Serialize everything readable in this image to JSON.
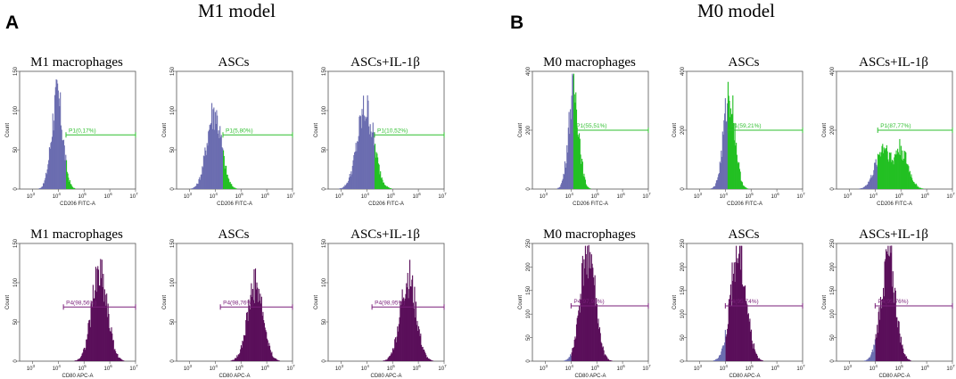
{
  "panels": [
    {
      "letter": "A",
      "title": "M1 model"
    },
    {
      "letter": "B",
      "title": "M0 model"
    }
  ],
  "chart_data": [
    {
      "type": "histogram",
      "panel": "A",
      "title": "M1 macrophages",
      "xlabel": "CD206 FITC-A",
      "ylabel": "Count",
      "yticks": [
        "0",
        "50",
        "100",
        "150"
      ],
      "ylim": [
        0,
        150
      ],
      "xlim": [
        2.5,
        7
      ],
      "peak_log": 3.95,
      "width": 0.22,
      "peak": 120,
      "gate": {
        "label": "P1(0,17%)",
        "start_log": 4.3,
        "end_log": 7,
        "percent": 0.17
      },
      "gate_color": "#2fbf2f",
      "fill": "#6b6db0",
      "positive_fill": "#22c022"
    },
    {
      "type": "histogram",
      "panel": "A",
      "title": "ASCs",
      "xlabel": "CD206 FITC-A",
      "ylabel": "Count",
      "yticks": [
        "0",
        "50",
        "100",
        "150"
      ],
      "ylim": [
        0,
        150
      ],
      "xlim": [
        2.5,
        7
      ],
      "peak_log": 3.95,
      "width": 0.28,
      "peak": 102,
      "gate": {
        "label": "P1(5,80%)",
        "start_log": 4.3,
        "end_log": 7,
        "percent": 5.8
      },
      "gate_color": "#2fbf2f",
      "fill": "#6b6db0",
      "positive_fill": "#22c022"
    },
    {
      "type": "histogram",
      "panel": "A",
      "title": "ASCs+IL-1β",
      "xlabel": "CD206 FITC-A",
      "ylabel": "Count",
      "yticks": [
        "0",
        "50",
        "100",
        "150"
      ],
      "ylim": [
        0,
        150
      ],
      "xlim": [
        2.5,
        7
      ],
      "peak_log": 3.95,
      "width": 0.32,
      "peak": 105,
      "gate": {
        "label": "P1(10,52%)",
        "start_log": 4.3,
        "end_log": 7,
        "percent": 10.52
      },
      "gate_color": "#2fbf2f",
      "fill": "#6b6db0",
      "positive_fill": "#22c022"
    },
    {
      "type": "histogram",
      "panel": "B",
      "title": "M0 macrophages",
      "xlabel": "CD206 FITC-A",
      "ylabel": "Count",
      "yticks": [
        "0",
        "200",
        "400"
      ],
      "ylim": [
        0,
        400
      ],
      "xlim": [
        2.5,
        7
      ],
      "peak_log": 4.1,
      "width": 0.2,
      "peak": 345,
      "gate": {
        "label": "P1(55,51%)",
        "start_log": 4.1,
        "end_log": 7,
        "percent": 55.51
      },
      "gate_color": "#2fbf2f",
      "fill": "#6b6db0",
      "positive_fill": "#22c022"
    },
    {
      "type": "histogram",
      "panel": "B",
      "title": "ASCs",
      "xlabel": "CD206 FITC-A",
      "ylabel": "Count",
      "yticks": [
        "0",
        "200",
        "400"
      ],
      "ylim": [
        0,
        400
      ],
      "xlim": [
        2.5,
        7
      ],
      "peak_log": 4.15,
      "width": 0.22,
      "peak": 330,
      "gate": {
        "label": "P1(59,21%)",
        "start_log": 4.1,
        "end_log": 7,
        "percent": 59.21
      },
      "gate_color": "#2fbf2f",
      "fill": "#6b6db0",
      "positive_fill": "#22c022"
    },
    {
      "type": "histogram",
      "panel": "B",
      "title": "ASCs+IL-1β",
      "xlabel": "CD206 FITC-A",
      "ylabel": "Count",
      "yticks": [
        "0",
        "200",
        "400"
      ],
      "ylim": [
        0,
        400
      ],
      "xlim": [
        2.5,
        7
      ],
      "peak_log": 4.65,
      "width": 0.45,
      "peak": 150,
      "gate": {
        "label": "P1(87,77%)",
        "start_log": 4.1,
        "end_log": 7,
        "percent": 87.77
      },
      "gate_color": "#2fbf2f",
      "fill": "#6b6db0",
      "positive_fill": "#22c022"
    },
    {
      "type": "histogram",
      "panel": "A",
      "title": "M1 macrophages",
      "xlabel": "CD80 APC-A",
      "ylabel": "Count",
      "yticks": [
        "0",
        "50",
        "100",
        "150"
      ],
      "ylim": [
        0,
        150
      ],
      "xlim": [
        2.5,
        7
      ],
      "peak_log": 5.6,
      "width": 0.3,
      "peak": 118,
      "gate": {
        "label": "P4(98,56%)",
        "start_log": 4.2,
        "end_log": 7,
        "percent": 98.56
      },
      "gate_color": "#7a1f7a",
      "fill": "#5a0f5a",
      "negative_fill": "#6b6db0"
    },
    {
      "type": "histogram",
      "panel": "A",
      "title": "ASCs",
      "xlabel": "CD80 APC-A",
      "ylabel": "Count",
      "yticks": [
        "0",
        "50",
        "100",
        "150"
      ],
      "ylim": [
        0,
        150
      ],
      "xlim": [
        2.5,
        7
      ],
      "peak_log": 5.55,
      "width": 0.3,
      "peak": 100,
      "gate": {
        "label": "P4(98,76%)",
        "start_log": 4.2,
        "end_log": 7,
        "percent": 98.76
      },
      "gate_color": "#7a1f7a",
      "fill": "#5a0f5a",
      "negative_fill": "#6b6db0"
    },
    {
      "type": "histogram",
      "panel": "A",
      "title": "ASCs+IL-1β",
      "xlabel": "CD80 APC-A",
      "ylabel": "Count",
      "yticks": [
        "0",
        "50",
        "100",
        "150"
      ],
      "ylim": [
        0,
        150
      ],
      "xlim": [
        2.5,
        7
      ],
      "peak_log": 5.6,
      "width": 0.3,
      "peak": 110,
      "gate": {
        "label": "P4(98,95%)",
        "start_log": 4.2,
        "end_log": 7,
        "percent": 98.95
      },
      "gate_color": "#7a1f7a",
      "fill": "#5a0f5a",
      "negative_fill": "#6b6db0"
    },
    {
      "type": "histogram",
      "panel": "B",
      "title": "M0 macrophages",
      "xlabel": "CD80 APC-A",
      "ylabel": "Count",
      "yticks": [
        "0",
        "50",
        "100",
        "150",
        "200",
        "250"
      ],
      "ylim": [
        0,
        250
      ],
      "xlim": [
        2.5,
        7
      ],
      "peak_log": 4.65,
      "width": 0.28,
      "peak": 240,
      "gate": {
        "label": "P4(97,98%)",
        "start_log": 4.0,
        "end_log": 7,
        "percent": 97.98
      },
      "gate_color": "#7a1f7a",
      "fill": "#5a0f5a",
      "negative_fill": "#6b6db0"
    },
    {
      "type": "histogram",
      "panel": "B",
      "title": "ASCs",
      "xlabel": "CD80 APC-A",
      "ylabel": "Count",
      "yticks": [
        "0",
        "50",
        "100",
        "150",
        "200",
        "250"
      ],
      "ylim": [
        0,
        250
      ],
      "xlim": [
        2.5,
        7
      ],
      "peak_log": 4.5,
      "width": 0.3,
      "peak": 240,
      "gate": {
        "label": "P4(95,74%)",
        "start_log": 4.0,
        "end_log": 7,
        "percent": 95.74
      },
      "gate_color": "#7a1f7a",
      "fill": "#5a0f5a",
      "negative_fill": "#6b6db0"
    },
    {
      "type": "histogram",
      "panel": "B",
      "title": "ASCs+IL-1β",
      "xlabel": "CD80 APC-A",
      "ylabel": "Count",
      "yticks": [
        "0",
        "50",
        "100",
        "150",
        "200",
        "250"
      ],
      "ylim": [
        0,
        250
      ],
      "xlim": [
        2.5,
        7
      ],
      "peak_log": 4.5,
      "width": 0.28,
      "peak": 225,
      "gate": {
        "label": "P4(95,76%)",
        "start_log": 4.0,
        "end_log": 7,
        "percent": 95.76
      },
      "gate_color": "#7a1f7a",
      "fill": "#5a0f5a",
      "negative_fill": "#6b6db0"
    }
  ]
}
